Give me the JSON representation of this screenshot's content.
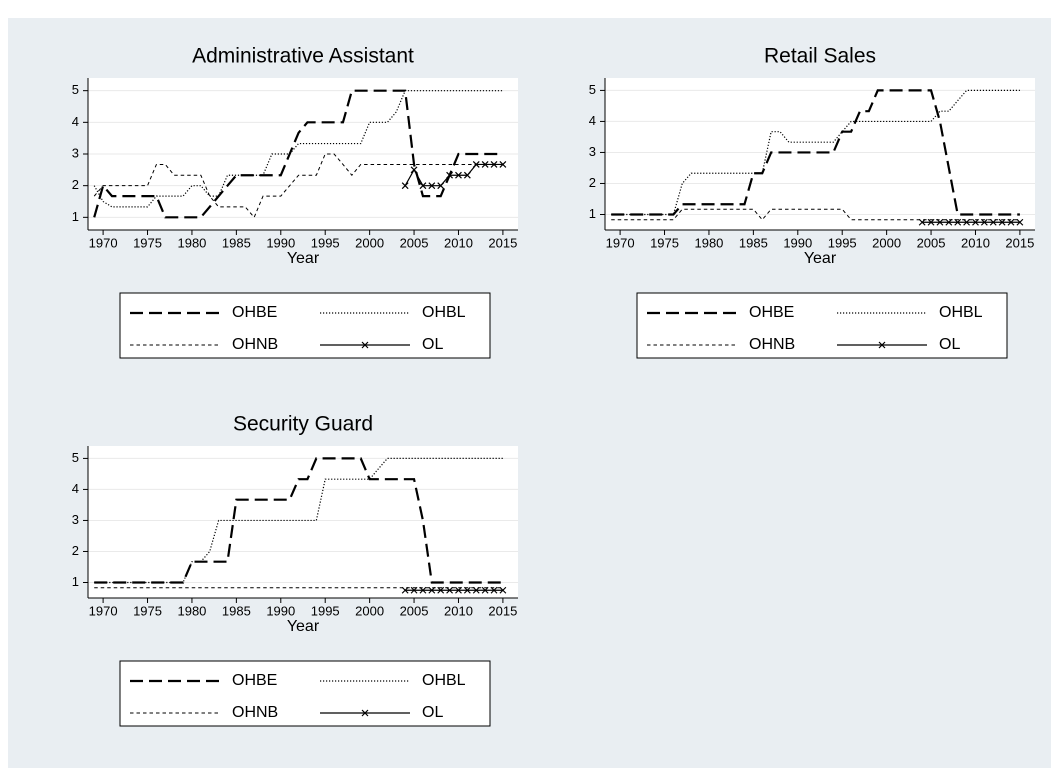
{
  "chart_data": [
    {
      "type": "line",
      "title": "Administrative Assistant",
      "xlabel": "Year",
      "x": [
        1969,
        1970,
        1971,
        1972,
        1973,
        1974,
        1975,
        1976,
        1977,
        1978,
        1979,
        1980,
        1981,
        1982,
        1983,
        1984,
        1985,
        1986,
        1987,
        1988,
        1989,
        1990,
        1991,
        1992,
        1993,
        1994,
        1995,
        1996,
        1997,
        1998,
        1999,
        2000,
        2001,
        2002,
        2003,
        2004,
        2005,
        2006,
        2007,
        2008,
        2009,
        2010,
        2011,
        2012,
        2013,
        2014,
        2015
      ],
      "xlim": [
        1968.3,
        2016.7
      ],
      "xticks": [
        1970,
        1975,
        1980,
        1985,
        1990,
        1995,
        2000,
        2005,
        2010,
        2015
      ],
      "ylim": [
        0.6,
        5.4
      ],
      "yticks": [
        1,
        2,
        3,
        4,
        5
      ],
      "grid": true,
      "series": [
        {
          "name": "OHBE",
          "color": "#000000",
          "linestyle": "long-dashed",
          "values": [
            1,
            2,
            1.67,
            1.67,
            1.67,
            1.67,
            1.67,
            1.67,
            1,
            1,
            1,
            1,
            1,
            1.33,
            1.67,
            2,
            2.33,
            2.33,
            2.33,
            2.33,
            2.33,
            2.33,
            3,
            3.67,
            4,
            4,
            4,
            4,
            4,
            5,
            5,
            5,
            5,
            5,
            5,
            5,
            2.67,
            1.67,
            1.67,
            1.67,
            2.33,
            3,
            3,
            3,
            3,
            3,
            3
          ]
        },
        {
          "name": "OHBL",
          "color": "#000000",
          "linestyle": "dotted",
          "values": [
            2,
            1.5,
            1.33,
            1.33,
            1.33,
            1.33,
            1.33,
            1.67,
            1.67,
            1.67,
            1.67,
            2,
            2,
            1.67,
            1.67,
            2.33,
            2.33,
            2.33,
            2.33,
            2.33,
            3,
            3,
            3,
            3.33,
            3.33,
            3.33,
            3.33,
            3.33,
            3.33,
            3.33,
            3.33,
            4,
            4,
            4,
            4.33,
            5,
            5,
            5,
            5,
            5,
            5,
            5,
            5,
            5,
            5,
            5,
            5
          ]
        },
        {
          "name": "OHNB",
          "color": "#000000",
          "linestyle": "short-dashed",
          "values": [
            1.67,
            2,
            2,
            2,
            2,
            2,
            2,
            2.67,
            2.67,
            2.33,
            2.33,
            2.33,
            2.33,
            1.67,
            1.33,
            1.33,
            1.33,
            1.33,
            1,
            1.67,
            1.67,
            1.67,
            2,
            2.33,
            2.33,
            2.33,
            3,
            3,
            2.67,
            2.33,
            2.67,
            2.67,
            2.67,
            2.67,
            2.67,
            2.67,
            2.67,
            2.67,
            2.67,
            2.67,
            2.67,
            2.67,
            2.67,
            2.67,
            2.67,
            2.67,
            2.67
          ]
        },
        {
          "name": "OL",
          "color": "#000000",
          "linestyle": "solid",
          "marker": "x",
          "values": [
            null,
            null,
            null,
            null,
            null,
            null,
            null,
            null,
            null,
            null,
            null,
            null,
            null,
            null,
            null,
            null,
            null,
            null,
            null,
            null,
            null,
            null,
            null,
            null,
            null,
            null,
            null,
            null,
            null,
            null,
            null,
            null,
            null,
            null,
            null,
            2,
            2.5,
            2,
            2,
            2,
            2.33,
            2.33,
            2.33,
            2.67,
            2.67,
            2.67,
            2.67
          ]
        }
      ]
    },
    {
      "type": "line",
      "title": "Retail Sales",
      "xlabel": "Year",
      "x": [
        1969,
        1970,
        1971,
        1972,
        1973,
        1974,
        1975,
        1976,
        1977,
        1978,
        1979,
        1980,
        1981,
        1982,
        1983,
        1984,
        1985,
        1986,
        1987,
        1988,
        1989,
        1990,
        1991,
        1992,
        1993,
        1994,
        1995,
        1996,
        1997,
        1998,
        1999,
        2000,
        2001,
        2002,
        2003,
        2004,
        2005,
        2006,
        2007,
        2008,
        2009,
        2010,
        2011,
        2012,
        2013,
        2014,
        2015
      ],
      "xlim": [
        1968.3,
        2016.7
      ],
      "xticks": [
        1970,
        1975,
        1980,
        1985,
        1990,
        1995,
        2000,
        2005,
        2010,
        2015
      ],
      "ylim": [
        0.5,
        5.4
      ],
      "yticks": [
        1,
        2,
        3,
        4,
        5
      ],
      "grid": true,
      "series": [
        {
          "name": "OHBE",
          "color": "#000000",
          "linestyle": "long-dashed",
          "values": [
            1,
            1,
            1,
            1,
            1,
            1,
            1,
            1,
            1.33,
            1.33,
            1.33,
            1.33,
            1.33,
            1.33,
            1.33,
            1.33,
            2.33,
            2.33,
            3,
            3,
            3,
            3,
            3,
            3,
            3,
            3,
            3.67,
            3.67,
            4.33,
            4.33,
            5,
            5,
            5,
            5,
            5,
            5,
            5,
            4,
            2.5,
            1,
            1,
            1,
            1,
            1,
            1,
            1,
            1
          ]
        },
        {
          "name": "OHBL",
          "color": "#000000",
          "linestyle": "dotted",
          "values": [
            1,
            1,
            1,
            1,
            1,
            1,
            1,
            1,
            2,
            2.33,
            2.33,
            2.33,
            2.33,
            2.33,
            2.33,
            2.33,
            2.33,
            2.33,
            3.67,
            3.67,
            3.33,
            3.33,
            3.33,
            3.33,
            3.33,
            3.33,
            3.67,
            4,
            4,
            4,
            4,
            4,
            4,
            4,
            4,
            4,
            4,
            4.33,
            4.33,
            4.67,
            5,
            5,
            5,
            5,
            5,
            5,
            5
          ]
        },
        {
          "name": "OHNB",
          "color": "#000000",
          "linestyle": "short-dashed",
          "values": [
            0.83,
            0.83,
            0.83,
            0.83,
            0.83,
            0.83,
            0.83,
            0.83,
            1.17,
            1.17,
            1.17,
            1.17,
            1.17,
            1.17,
            1.17,
            1.17,
            1.17,
            0.83,
            1.17,
            1.17,
            1.17,
            1.17,
            1.17,
            1.17,
            1.17,
            1.17,
            1.17,
            0.83,
            0.83,
            0.83,
            0.83,
            0.83,
            0.83,
            0.83,
            0.83,
            0.83,
            0.83,
            0.83,
            0.83,
            0.83,
            0.83,
            0.83,
            0.83,
            0.83,
            0.83,
            0.83,
            0.83
          ]
        },
        {
          "name": "OL",
          "color": "#000000",
          "linestyle": "solid",
          "marker": "x",
          "values": [
            null,
            null,
            null,
            null,
            null,
            null,
            null,
            null,
            null,
            null,
            null,
            null,
            null,
            null,
            null,
            null,
            null,
            null,
            null,
            null,
            null,
            null,
            null,
            null,
            null,
            null,
            null,
            null,
            null,
            null,
            null,
            null,
            null,
            null,
            null,
            0.75,
            0.75,
            0.75,
            0.75,
            0.75,
            0.75,
            0.75,
            0.75,
            0.75,
            0.75,
            0.75,
            0.75
          ]
        }
      ]
    },
    {
      "type": "line",
      "title": "Security Guard",
      "xlabel": "Year",
      "x": [
        1969,
        1970,
        1971,
        1972,
        1973,
        1974,
        1975,
        1976,
        1977,
        1978,
        1979,
        1980,
        1981,
        1982,
        1983,
        1984,
        1985,
        1986,
        1987,
        1988,
        1989,
        1990,
        1991,
        1992,
        1993,
        1994,
        1995,
        1996,
        1997,
        1998,
        1999,
        2000,
        2001,
        2002,
        2003,
        2004,
        2005,
        2006,
        2007,
        2008,
        2009,
        2010,
        2011,
        2012,
        2013,
        2014,
        2015
      ],
      "xlim": [
        1968.3,
        2016.7
      ],
      "xticks": [
        1970,
        1975,
        1980,
        1985,
        1990,
        1995,
        2000,
        2005,
        2010,
        2015
      ],
      "ylim": [
        0.5,
        5.4
      ],
      "yticks": [
        1,
        2,
        3,
        4,
        5
      ],
      "grid": true,
      "series": [
        {
          "name": "OHBE",
          "color": "#000000",
          "linestyle": "long-dashed",
          "values": [
            1,
            1,
            1,
            1,
            1,
            1,
            1,
            1,
            1,
            1,
            1,
            1.67,
            1.67,
            1.67,
            1.67,
            1.67,
            3.67,
            3.67,
            3.67,
            3.67,
            3.67,
            3.67,
            3.67,
            4.33,
            4.33,
            5,
            5,
            5,
            5,
            5,
            5,
            4.33,
            4.33,
            4.33,
            4.33,
            4.33,
            4.33,
            3,
            1,
            1,
            1,
            1,
            1,
            1,
            1,
            1,
            1
          ]
        },
        {
          "name": "OHBL",
          "color": "#000000",
          "linestyle": "dotted",
          "values": [
            1,
            1,
            1,
            1,
            1,
            1,
            1,
            1,
            1,
            1,
            1,
            1.67,
            1.67,
            2,
            3,
            3,
            3,
            3,
            3,
            3,
            3,
            3,
            3,
            3,
            3,
            3,
            4.33,
            4.33,
            4.33,
            4.33,
            4.33,
            4.33,
            4.67,
            5,
            5,
            5,
            5,
            5,
            5,
            5,
            5,
            5,
            5,
            5,
            5,
            5,
            5
          ]
        },
        {
          "name": "OHNB",
          "color": "#000000",
          "linestyle": "short-dashed",
          "values": [
            0.83,
            0.83,
            0.83,
            0.83,
            0.83,
            0.83,
            0.83,
            0.83,
            0.83,
            0.83,
            0.83,
            0.83,
            0.83,
            0.83,
            0.83,
            0.83,
            0.83,
            0.83,
            0.83,
            0.83,
            0.83,
            0.83,
            0.83,
            0.83,
            0.83,
            0.83,
            0.83,
            0.83,
            0.83,
            0.83,
            0.83,
            0.83,
            0.83,
            0.83,
            0.83,
            0.83,
            0.83,
            0.83,
            0.83,
            0.83,
            0.83,
            0.83,
            0.83,
            0.83,
            0.83,
            0.83,
            0.83
          ]
        },
        {
          "name": "OL",
          "color": "#000000",
          "linestyle": "solid",
          "marker": "x",
          "values": [
            null,
            null,
            null,
            null,
            null,
            null,
            null,
            null,
            null,
            null,
            null,
            null,
            null,
            null,
            null,
            null,
            null,
            null,
            null,
            null,
            null,
            null,
            null,
            null,
            null,
            null,
            null,
            null,
            null,
            null,
            null,
            null,
            null,
            null,
            null,
            0.75,
            0.75,
            0.75,
            0.75,
            0.75,
            0.75,
            0.75,
            0.75,
            0.75,
            0.75,
            0.75,
            0.75
          ]
        }
      ]
    }
  ]
}
